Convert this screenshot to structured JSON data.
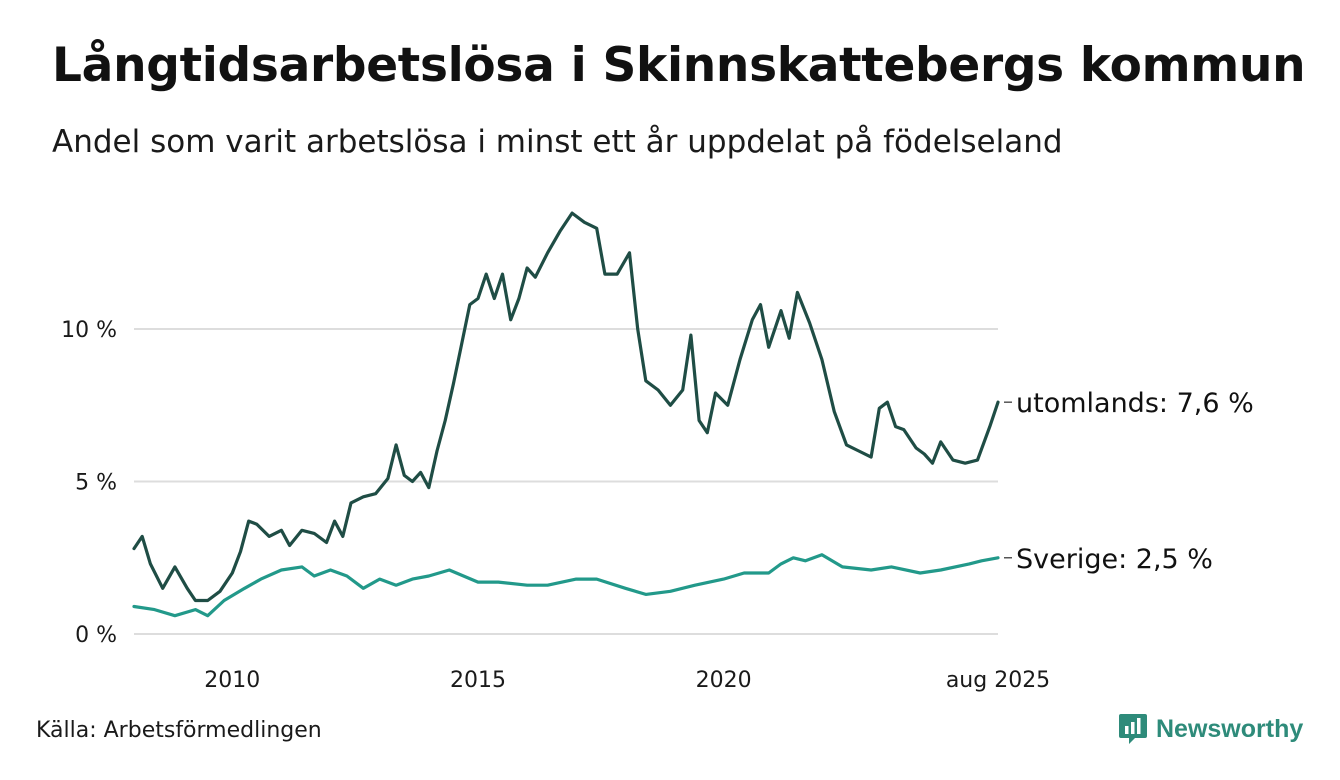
{
  "header": {
    "title": "Långtidsarbetslösa i Skinnskattebergs kommun",
    "subtitle": "Andel som varit arbetslösa i minst ett år uppdelat på födelseland"
  },
  "footer": {
    "source": "Källa: Arbetsförmedlingen",
    "brand": "Newsworthy",
    "brand_icon": "newsworthy-logo-icon"
  },
  "colors": {
    "utomlands": "#1f4d45",
    "sverige": "#22998a",
    "grid": "#dddddd",
    "brand": "#2e8b7a"
  },
  "chart_data": {
    "type": "line",
    "title": "Långtidsarbetslösa i Skinnskattebergs kommun",
    "subtitle": "Andel som varit arbetslösa i minst ett år uppdelat på födelseland",
    "xlabel": "",
    "ylabel": "",
    "xlim": [
      "2008-01",
      "2025-08"
    ],
    "ylim": [
      0,
      14
    ],
    "y_ticks": [
      {
        "value": 0,
        "label": "0 %"
      },
      {
        "value": 5,
        "label": "5 %"
      },
      {
        "value": 10,
        "label": "10 %"
      }
    ],
    "x_ticks": [
      {
        "value": "2010-01",
        "label": "2010"
      },
      {
        "value": "2015-01",
        "label": "2015"
      },
      {
        "value": "2020-01",
        "label": "2020"
      },
      {
        "value": "2025-08",
        "label": "aug 2025"
      }
    ],
    "grid": "horizontal",
    "legend": "end-labels",
    "series": [
      {
        "name": "utomlands",
        "end_label": "utomlands: 7,6 %",
        "points": [
          [
            "2008-01",
            2.8
          ],
          [
            "2008-03",
            3.2
          ],
          [
            "2008-05",
            2.3
          ],
          [
            "2008-08",
            1.5
          ],
          [
            "2008-11",
            2.2
          ],
          [
            "2009-02",
            1.5
          ],
          [
            "2009-04",
            1.1
          ],
          [
            "2009-07",
            1.1
          ],
          [
            "2009-10",
            1.4
          ],
          [
            "2010-01",
            2.0
          ],
          [
            "2010-03",
            2.7
          ],
          [
            "2010-05",
            3.7
          ],
          [
            "2010-07",
            3.6
          ],
          [
            "2010-10",
            3.2
          ],
          [
            "2011-01",
            3.4
          ],
          [
            "2011-03",
            2.9
          ],
          [
            "2011-06",
            3.4
          ],
          [
            "2011-09",
            3.3
          ],
          [
            "2011-12",
            3.0
          ],
          [
            "2012-02",
            3.7
          ],
          [
            "2012-04",
            3.2
          ],
          [
            "2012-06",
            4.3
          ],
          [
            "2012-09",
            4.5
          ],
          [
            "2012-12",
            4.6
          ],
          [
            "2013-03",
            5.1
          ],
          [
            "2013-05",
            6.2
          ],
          [
            "2013-07",
            5.2
          ],
          [
            "2013-09",
            5.0
          ],
          [
            "2013-11",
            5.3
          ],
          [
            "2014-01",
            4.8
          ],
          [
            "2014-03",
            6.0
          ],
          [
            "2014-05",
            7.0
          ],
          [
            "2014-07",
            8.2
          ],
          [
            "2014-09",
            9.5
          ],
          [
            "2014-11",
            10.8
          ],
          [
            "2015-01",
            11.0
          ],
          [
            "2015-03",
            11.8
          ],
          [
            "2015-05",
            11.0
          ],
          [
            "2015-07",
            11.8
          ],
          [
            "2015-09",
            10.3
          ],
          [
            "2015-11",
            11.0
          ],
          [
            "2016-01",
            12.0
          ],
          [
            "2016-03",
            11.7
          ],
          [
            "2016-06",
            12.5
          ],
          [
            "2016-09",
            13.2
          ],
          [
            "2016-12",
            13.8
          ],
          [
            "2017-03",
            13.5
          ],
          [
            "2017-06",
            13.3
          ],
          [
            "2017-08",
            11.8
          ],
          [
            "2017-11",
            11.8
          ],
          [
            "2018-02",
            12.5
          ],
          [
            "2018-04",
            10.0
          ],
          [
            "2018-06",
            8.3
          ],
          [
            "2018-09",
            8.0
          ],
          [
            "2018-12",
            7.5
          ],
          [
            "2019-03",
            8.0
          ],
          [
            "2019-05",
            9.8
          ],
          [
            "2019-07",
            7.0
          ],
          [
            "2019-09",
            6.6
          ],
          [
            "2019-11",
            7.9
          ],
          [
            "2020-02",
            7.5
          ],
          [
            "2020-05",
            9.0
          ],
          [
            "2020-08",
            10.3
          ],
          [
            "2020-10",
            10.8
          ],
          [
            "2020-12",
            9.4
          ],
          [
            "2021-03",
            10.6
          ],
          [
            "2021-05",
            9.7
          ],
          [
            "2021-07",
            11.2
          ],
          [
            "2021-10",
            10.2
          ],
          [
            "2022-01",
            9.0
          ],
          [
            "2022-04",
            7.3
          ],
          [
            "2022-07",
            6.2
          ],
          [
            "2022-10",
            6.0
          ],
          [
            "2023-01",
            5.8
          ],
          [
            "2023-03",
            7.4
          ],
          [
            "2023-05",
            7.6
          ],
          [
            "2023-07",
            6.8
          ],
          [
            "2023-09",
            6.7
          ],
          [
            "2023-12",
            6.1
          ],
          [
            "2024-02",
            5.9
          ],
          [
            "2024-04",
            5.6
          ],
          [
            "2024-06",
            6.3
          ],
          [
            "2024-09",
            5.7
          ],
          [
            "2024-12",
            5.6
          ],
          [
            "2025-03",
            5.7
          ],
          [
            "2025-06",
            6.8
          ],
          [
            "2025-08",
            7.6
          ]
        ]
      },
      {
        "name": "Sverige",
        "end_label": "Sverige: 2,5 %",
        "points": [
          [
            "2008-01",
            0.9
          ],
          [
            "2008-06",
            0.8
          ],
          [
            "2008-11",
            0.6
          ],
          [
            "2009-04",
            0.8
          ],
          [
            "2009-07",
            0.6
          ],
          [
            "2009-11",
            1.1
          ],
          [
            "2010-04",
            1.5
          ],
          [
            "2010-08",
            1.8
          ],
          [
            "2011-01",
            2.1
          ],
          [
            "2011-06",
            2.2
          ],
          [
            "2011-09",
            1.9
          ],
          [
            "2012-01",
            2.1
          ],
          [
            "2012-05",
            1.9
          ],
          [
            "2012-09",
            1.5
          ],
          [
            "2013-01",
            1.8
          ],
          [
            "2013-05",
            1.6
          ],
          [
            "2013-09",
            1.8
          ],
          [
            "2014-01",
            1.9
          ],
          [
            "2014-06",
            2.1
          ],
          [
            "2015-01",
            1.7
          ],
          [
            "2015-06",
            1.7
          ],
          [
            "2016-01",
            1.6
          ],
          [
            "2016-06",
            1.6
          ],
          [
            "2017-01",
            1.8
          ],
          [
            "2017-06",
            1.8
          ],
          [
            "2018-01",
            1.5
          ],
          [
            "2018-06",
            1.3
          ],
          [
            "2018-12",
            1.4
          ],
          [
            "2019-06",
            1.6
          ],
          [
            "2020-01",
            1.8
          ],
          [
            "2020-06",
            2.0
          ],
          [
            "2020-12",
            2.0
          ],
          [
            "2021-03",
            2.3
          ],
          [
            "2021-06",
            2.5
          ],
          [
            "2021-09",
            2.4
          ],
          [
            "2022-01",
            2.6
          ],
          [
            "2022-06",
            2.2
          ],
          [
            "2023-01",
            2.1
          ],
          [
            "2023-06",
            2.2
          ],
          [
            "2024-01",
            2.0
          ],
          [
            "2024-06",
            2.1
          ],
          [
            "2025-01",
            2.3
          ],
          [
            "2025-04",
            2.4
          ],
          [
            "2025-08",
            2.5
          ]
        ]
      }
    ]
  }
}
